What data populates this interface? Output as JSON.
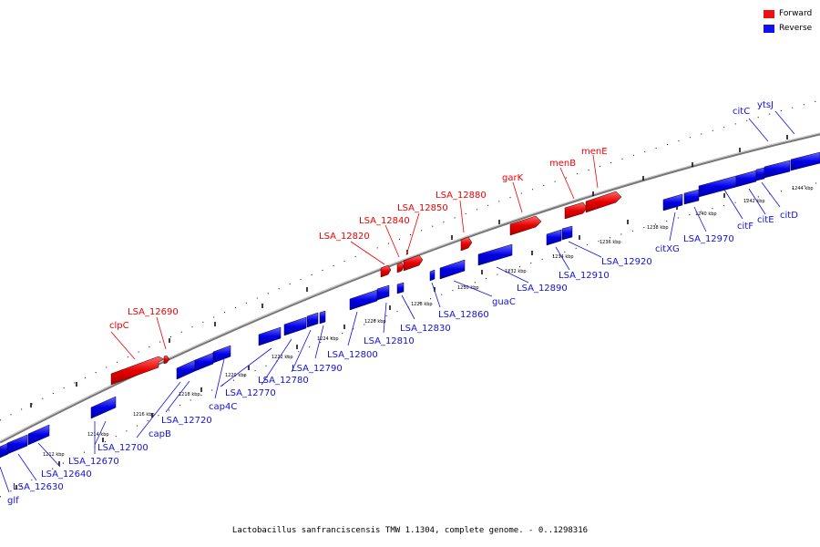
{
  "legend": {
    "forward": {
      "label": "Forward",
      "color": "#ee1111"
    },
    "reverse": {
      "label": "Reverse",
      "color": "#1111ee"
    }
  },
  "caption": "Lactobacillus sanfranciscensis TMW 1.1304, complete genome. - 0..1298316",
  "colors": {
    "forward": "#ee1111",
    "reverse": "#1111ee",
    "backbone": "#888888"
  },
  "scale": {
    "ticks": [
      "1212 kbp",
      "1214 kbp",
      "1216 kbp",
      "1218 kbp",
      "1220 kbp",
      "1222 kbp",
      "1224 kbp",
      "1226 kbp",
      "1228 kbp",
      "1230 kbp",
      "1232 kbp",
      "1234 kbp",
      "1236 kbp",
      "1238 kbp",
      "1240 kbp",
      "1242 kbp",
      "1244 kbp"
    ]
  },
  "genes": {
    "forward": [
      "clpC",
      "LSA_12690",
      "LSA_12820",
      "LSA_12840",
      "LSA_12850",
      "LSA_12880",
      "garK",
      "menB",
      "menE"
    ],
    "reverse": [
      "glf",
      "LSA_12630",
      "LSA_12640",
      "LSA_12670",
      "LSA_12700",
      "capB",
      "LSA_12720",
      "cap4C",
      "LSA_12770",
      "LSA_12780",
      "LSA_12790",
      "LSA_12800",
      "LSA_12810",
      "LSA_12830",
      "LSA_12860",
      "guaC",
      "LSA_12890",
      "LSA_12910",
      "LSA_12920",
      "citXG",
      "LSA_12970",
      "citF",
      "citE",
      "citD",
      "citC",
      "ytsJ"
    ]
  }
}
